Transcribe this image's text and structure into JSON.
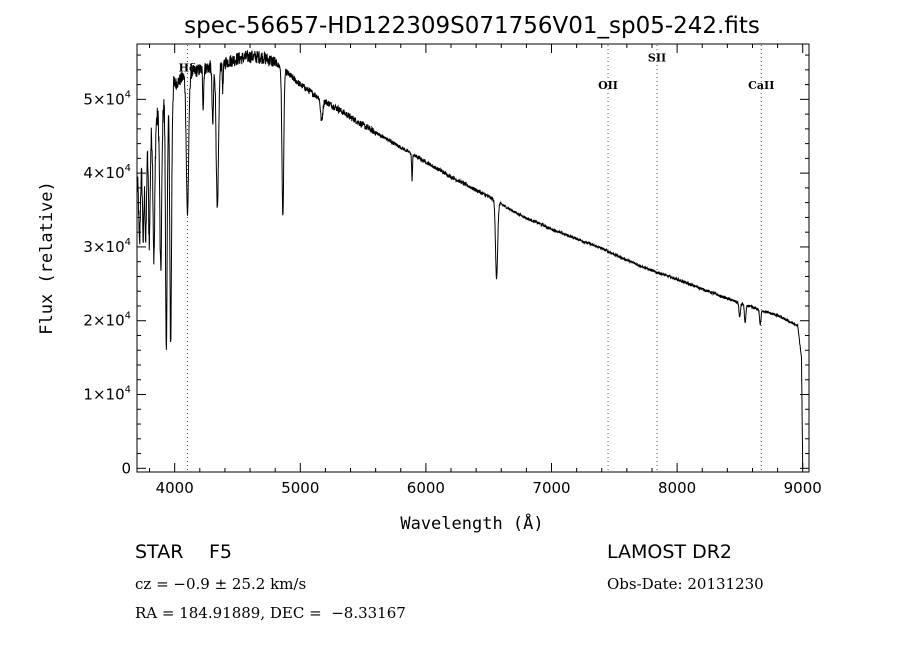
{
  "chart_data": {
    "type": "line",
    "title": "spec-56657-HD122309S071756V01_sp05-242.fits",
    "xlabel": "Wavelength (Å)",
    "ylabel": "Flux (relative)",
    "xlim": [
      3700,
      9050
    ],
    "ylim": [
      -500,
      57500
    ],
    "x_ticks": [
      {
        "value": 4000,
        "label": "4000"
      },
      {
        "value": 5000,
        "label": "5000"
      },
      {
        "value": 6000,
        "label": "6000"
      },
      {
        "value": 7000,
        "label": "7000"
      },
      {
        "value": 8000,
        "label": "8000"
      },
      {
        "value": 9000,
        "label": "9000"
      }
    ],
    "y_ticks": [
      {
        "value": 0,
        "mant": "0",
        "exp": ""
      },
      {
        "value": 10000,
        "mant": "1×10",
        "exp": "4"
      },
      {
        "value": 20000,
        "mant": "2×10",
        "exp": "4"
      },
      {
        "value": 30000,
        "mant": "3×10",
        "exp": "4"
      },
      {
        "value": 40000,
        "mant": "4×10",
        "exp": "4"
      },
      {
        "value": 50000,
        "mant": "5×10",
        "exp": "4"
      }
    ],
    "grid": false,
    "spectral_lines": [
      {
        "label": "Hδ",
        "x": 4102,
        "label_flux": 53800
      },
      {
        "label": "OII",
        "x": 7450,
        "label_flux": 51400
      },
      {
        "label": "SII",
        "x": 7840,
        "label_flux": 55100
      },
      {
        "label": "CaII",
        "x": 8670,
        "label_flux": 51400
      }
    ],
    "series": [
      {
        "continuum": [
          [
            3700,
            38000
          ],
          [
            3750,
            41000
          ],
          [
            3800,
            45000
          ],
          [
            3850,
            47000
          ],
          [
            3900,
            49000
          ],
          [
            3950,
            50500
          ],
          [
            4000,
            52000
          ],
          [
            4100,
            53500
          ],
          [
            4200,
            54000
          ],
          [
            4300,
            54500
          ],
          [
            4400,
            55000
          ],
          [
            4500,
            55500
          ],
          [
            4600,
            55800
          ],
          [
            4700,
            55700
          ],
          [
            4800,
            55000
          ],
          [
            4900,
            53500
          ],
          [
            5000,
            52000
          ],
          [
            5100,
            50800
          ],
          [
            5200,
            49700
          ],
          [
            5300,
            48700
          ],
          [
            5400,
            47600
          ],
          [
            5500,
            46500
          ],
          [
            5600,
            45500
          ],
          [
            5700,
            44500
          ],
          [
            5800,
            43500
          ],
          [
            5900,
            42500
          ],
          [
            6000,
            41500
          ],
          [
            6100,
            40500
          ],
          [
            6200,
            39500
          ],
          [
            6300,
            38600
          ],
          [
            6400,
            37700
          ],
          [
            6500,
            36800
          ],
          [
            6600,
            35800
          ],
          [
            6700,
            34800
          ],
          [
            6800,
            33900
          ],
          [
            6900,
            33200
          ],
          [
            7000,
            32400
          ],
          [
            7200,
            31100
          ],
          [
            7400,
            29800
          ],
          [
            7600,
            28200
          ],
          [
            7800,
            26800
          ],
          [
            8000,
            25600
          ],
          [
            8200,
            24300
          ],
          [
            8400,
            23000
          ],
          [
            8600,
            21800
          ],
          [
            8800,
            20700
          ],
          [
            8960,
            19300
          ],
          [
            8990,
            15000
          ],
          [
            9000,
            0
          ]
        ],
        "absorption": [
          {
            "x": 3720,
            "depth": 9000,
            "width": 8
          },
          {
            "x": 3750,
            "depth": 10000,
            "width": 8
          },
          {
            "x": 3770,
            "depth": 12000,
            "width": 8
          },
          {
            "x": 3798,
            "depth": 14000,
            "width": 9
          },
          {
            "x": 3835,
            "depth": 18000,
            "width": 10
          },
          {
            "x": 3889,
            "depth": 22000,
            "width": 11
          },
          {
            "x": 3934,
            "depth": 35000,
            "width": 9
          },
          {
            "x": 3968,
            "depth": 34000,
            "width": 10
          },
          {
            "x": 4102,
            "depth": 19000,
            "width": 13
          },
          {
            "x": 4227,
            "depth": 5000,
            "width": 6
          },
          {
            "x": 4303,
            "depth": 8000,
            "width": 8
          },
          {
            "x": 4340,
            "depth": 20000,
            "width": 13
          },
          {
            "x": 4383,
            "depth": 3500,
            "width": 6
          },
          {
            "x": 4861,
            "depth": 20000,
            "width": 10
          },
          {
            "x": 5170,
            "depth": 3000,
            "width": 12
          },
          {
            "x": 5890,
            "depth": 3500,
            "width": 5
          },
          {
            "x": 6563,
            "depth": 10500,
            "width": 12
          },
          {
            "x": 8498,
            "depth": 2000,
            "width": 8
          },
          {
            "x": 8542,
            "depth": 2500,
            "width": 8
          },
          {
            "x": 8662,
            "depth": 2000,
            "width": 8
          }
        ]
      }
    ]
  },
  "info": {
    "object_type": "STAR",
    "subclass": "F5",
    "survey": "LAMOST DR2",
    "redshift": "cz = −0.9 ± 25.2 km/s",
    "obs_date": "Obs-Date: 20131230",
    "coords": "RA = 184.91889, DEC =  −8.33167"
  }
}
